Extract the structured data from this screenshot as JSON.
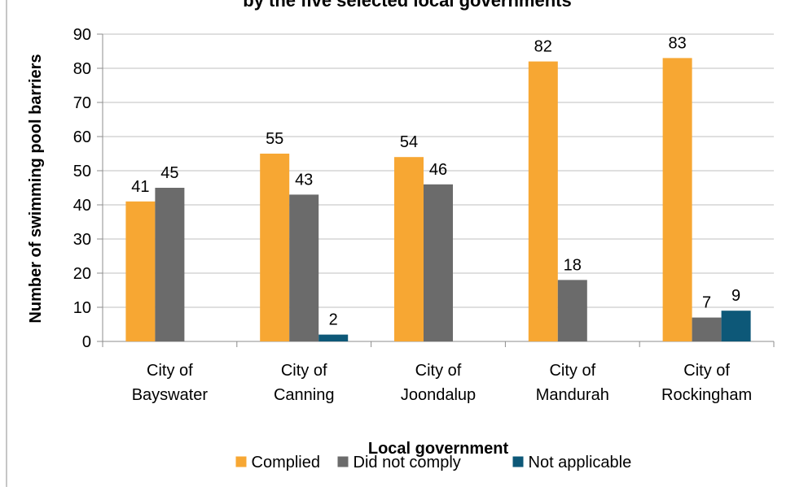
{
  "chart_data": {
    "type": "bar",
    "title": "by the five selected local governments",
    "xlabel": "Local government",
    "ylabel": "Number of swimming pool barriers",
    "ylim": [
      0,
      90
    ],
    "yticks": [
      0,
      10,
      20,
      30,
      40,
      50,
      60,
      70,
      80,
      90
    ],
    "categories": [
      [
        "City of",
        "Bayswater"
      ],
      [
        "City of",
        "Canning"
      ],
      [
        "City of",
        "Joondalup"
      ],
      [
        "City of",
        "Mandurah"
      ],
      [
        "City of",
        "Rockingham"
      ]
    ],
    "series": [
      {
        "name": "Complied",
        "color": "#f7a733",
        "values": [
          41,
          55,
          54,
          82,
          83
        ]
      },
      {
        "name": "Did not comply",
        "color": "#6b6b6b",
        "values": [
          45,
          43,
          46,
          18,
          7
        ]
      },
      {
        "name": "Not applicable",
        "color": "#0d5878",
        "values": [
          null,
          2,
          null,
          null,
          9
        ]
      }
    ],
    "grid": true,
    "legend_position": "bottom"
  }
}
